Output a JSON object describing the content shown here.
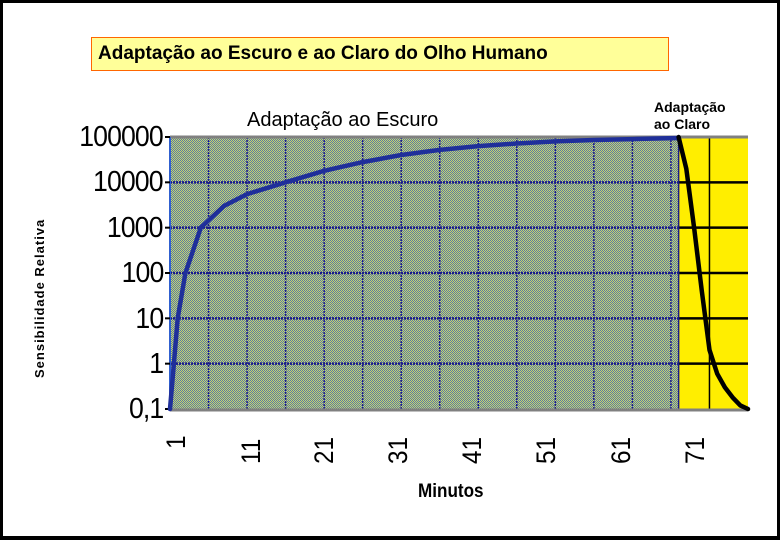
{
  "chart_data": {
    "type": "line",
    "title": "Adaptação ao Escuro e ao Claro do Olho Humano",
    "title_shadow_suffix": "ano",
    "xlabel": "Minutos",
    "ylabel": "Sensibilidade Relativa",
    "yscale": "log",
    "ylim": [
      0.1,
      100000
    ],
    "y_tick_labels": [
      "100000",
      "10000",
      "1000",
      "100",
      "10",
      "1",
      "0,1"
    ],
    "x_tick_labels": [
      "1",
      "11",
      "21",
      "31",
      "41",
      "51",
      "61",
      "71"
    ],
    "xlim": [
      1,
      76
    ],
    "grid": true,
    "annotations": [
      {
        "text": "Adaptação ao Escuro",
        "region": "dark"
      },
      {
        "text": "Adaptação\nao Claro",
        "region": "light"
      }
    ],
    "regions": [
      {
        "name": "Adaptação ao Escuro",
        "x_range": [
          1,
          67
        ],
        "fill": "#9dbb7a"
      },
      {
        "name": "Adaptação ao Claro",
        "x_range": [
          67,
          76
        ],
        "fill": "#ffee00"
      }
    ],
    "series": [
      {
        "name": "Adaptação ao Escuro",
        "color": "#1f2f9a",
        "x": [
          1,
          1.5,
          2,
          3,
          5,
          8,
          11,
          16,
          21,
          26,
          31,
          36,
          41,
          46,
          51,
          56,
          61,
          67
        ],
        "y": [
          0.1,
          1,
          10,
          100,
          1000,
          3000,
          5500,
          10000,
          18000,
          28000,
          40000,
          52000,
          63000,
          72000,
          80000,
          86000,
          90000,
          95000
        ]
      },
      {
        "name": "Adaptação ao Claro",
        "color": "#000000",
        "x": [
          67,
          68,
          69,
          70,
          71,
          72,
          73,
          74,
          75,
          76
        ],
        "y": [
          100000,
          20000,
          1000,
          40,
          2,
          0.6,
          0.3,
          0.18,
          0.12,
          0.1
        ]
      }
    ]
  }
}
